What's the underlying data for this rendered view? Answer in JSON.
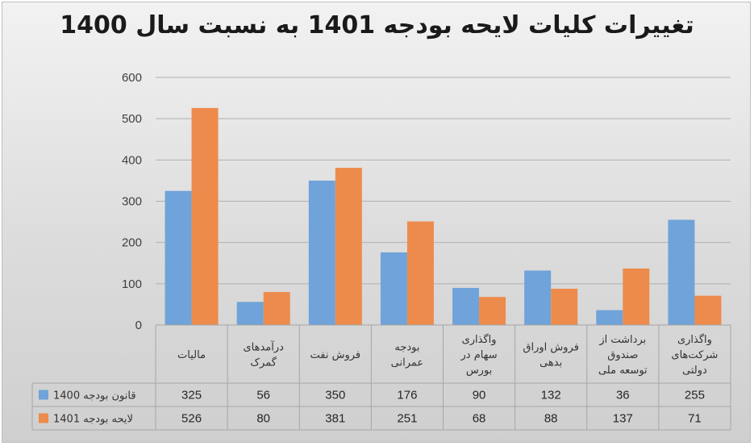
{
  "chart_data": {
    "type": "bar",
    "title": "تغییرات کلیات لایحه بودجه 1401 به نسبت سال 1400",
    "categories": [
      [
        "مالیات"
      ],
      [
        "درآمدهای",
        "گمرک"
      ],
      [
        "فروش نفت"
      ],
      [
        "بودجه",
        "عمرانی"
      ],
      [
        "واگذاری",
        "سهام در",
        "بورس"
      ],
      [
        "فروش اوراق",
        "بدهی"
      ],
      [
        "برداشت از",
        "صندوق",
        "توسعه ملی"
      ],
      [
        "واگذاری",
        "شرکت‌های",
        "دولتی"
      ]
    ],
    "series": [
      {
        "name": "قانون بودجه 1400",
        "color": "#6fa3d9",
        "values": [
          325,
          56,
          350,
          176,
          90,
          132,
          36,
          255
        ]
      },
      {
        "name": "لایحه بودجه 1401",
        "color": "#ed8b4c",
        "values": [
          526,
          80,
          381,
          251,
          68,
          88,
          137,
          71
        ]
      }
    ],
    "ylim": [
      0,
      600
    ],
    "yticks": [
      0,
      100,
      200,
      300,
      400,
      500,
      600
    ],
    "grid": true,
    "legend": "data-table"
  }
}
